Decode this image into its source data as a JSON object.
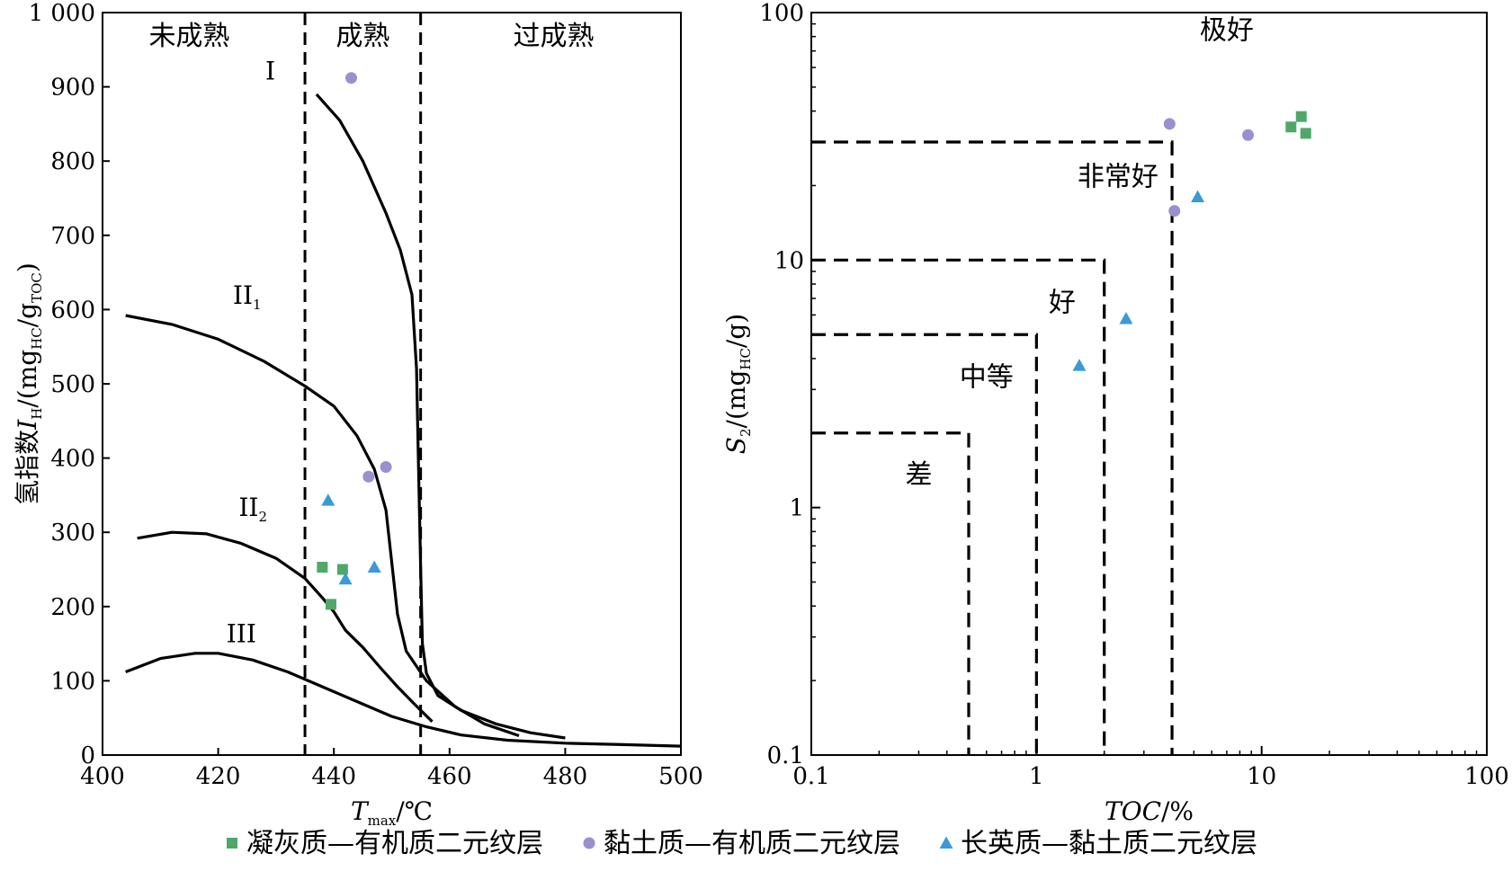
{
  "chart_data": [
    {
      "type": "scatter",
      "xlabel": "T",
      "xlabel_sub": "max",
      "xlabel_unit": "/℃",
      "ylabel_main": "氢指数",
      "ylabel_var": "I",
      "ylabel_var_sub": "H",
      "ylabel_unit": "/(mg",
      "ylabel_unit_sub1": "HC",
      "ylabel_unit_mid": "/g",
      "ylabel_unit_sub2": "TOC",
      "ylabel_unit_end": ")",
      "xlim": [
        400,
        500
      ],
      "ylim": [
        0,
        1000
      ],
      "x_ticks": [
        400,
        420,
        440,
        460,
        480,
        500
      ],
      "y_ticks": [
        0,
        100,
        200,
        300,
        400,
        500,
        600,
        700,
        800,
        900,
        1000
      ],
      "y_tick_labels": [
        "0",
        "100",
        "200",
        "300",
        "400",
        "500",
        "600",
        "700",
        "800",
        "900",
        "1 000"
      ],
      "vlines": [
        435,
        455
      ],
      "regions": [
        {
          "label": "未成熟",
          "x": 415
        },
        {
          "label": "成熟",
          "x": 445
        },
        {
          "label": "过成熟",
          "x": 478
        }
      ],
      "curves": [
        {
          "label": "I",
          "label_sub": "",
          "label_at": [
            429,
            910
          ],
          "points": [
            [
              437,
              890
            ],
            [
              441,
              855
            ],
            [
              445,
              800
            ],
            [
              449,
              730
            ],
            [
              451.5,
              680
            ],
            [
              453.5,
              620
            ],
            [
              454.3,
              520
            ],
            [
              454.6,
              400
            ],
            [
              455,
              250
            ],
            [
              455.3,
              150
            ],
            [
              456,
              110
            ],
            [
              458,
              80
            ],
            [
              462,
              60
            ],
            [
              468,
              42
            ],
            [
              474,
              30
            ],
            [
              480,
              23
            ]
          ]
        },
        {
          "label": "II",
          "label_sub": "1",
          "label_at": [
            425,
            608
          ],
          "points": [
            [
              404,
              592
            ],
            [
              412,
              580
            ],
            [
              420,
              560
            ],
            [
              428,
              530
            ],
            [
              435,
              497
            ],
            [
              440,
              470
            ],
            [
              444,
              430
            ],
            [
              447,
              385
            ],
            [
              449,
              330
            ],
            [
              450,
              260
            ],
            [
              451,
              190
            ],
            [
              452.5,
              140
            ],
            [
              456,
              100
            ],
            [
              461,
              65
            ],
            [
              466,
              42
            ],
            [
              472,
              26
            ]
          ]
        },
        {
          "label": "II",
          "label_sub": "2",
          "label_at": [
            426,
            322
          ],
          "points": [
            [
              406,
              292
            ],
            [
              412,
              300
            ],
            [
              418,
              298
            ],
            [
              424,
              285
            ],
            [
              430,
              265
            ],
            [
              435,
              238
            ],
            [
              438,
              212
            ],
            [
              440,
              193
            ],
            [
              442,
              168
            ],
            [
              445,
              145
            ],
            [
              448,
              118
            ],
            [
              451,
              92
            ],
            [
              454,
              68
            ],
            [
              457,
              45
            ]
          ]
        },
        {
          "label": "III",
          "label_sub": "",
          "label_at": [
            424,
            152
          ],
          "points": [
            [
              404,
              112
            ],
            [
              410,
              130
            ],
            [
              416,
              137
            ],
            [
              420,
              137
            ],
            [
              426,
              128
            ],
            [
              432,
              112
            ],
            [
              438,
              92
            ],
            [
              444,
              72
            ],
            [
              450,
              52
            ],
            [
              456,
              38
            ],
            [
              462,
              27
            ],
            [
              470,
              20
            ],
            [
              480,
              16
            ],
            [
              490,
              14
            ],
            [
              500,
              12
            ]
          ]
        }
      ],
      "series": [
        {
          "name": "凝灰质—有机质二元纹层",
          "marker": "square",
          "color": "#4fa86a",
          "points": [
            [
              438,
              253
            ],
            [
              441.5,
              250
            ],
            [
              439.5,
              203
            ]
          ]
        },
        {
          "name": "黏土质—有机质二元纹层",
          "marker": "circle",
          "color": "#9b8fd0",
          "points": [
            [
              443,
              912
            ],
            [
              446,
              375
            ],
            [
              449,
              388
            ]
          ]
        },
        {
          "name": "长英质—黏土质二元纹层",
          "marker": "triangle",
          "color": "#3a9ad8",
          "points": [
            [
              439,
              343
            ],
            [
              442,
              237
            ],
            [
              447,
              253
            ]
          ]
        }
      ]
    },
    {
      "type": "scatter",
      "log_x": true,
      "log_y": true,
      "xlabel": "TOC",
      "xlabel_unit": "/%",
      "ylabel_var": "S",
      "ylabel_var_sub": "2",
      "ylabel_unit": "/(mg",
      "ylabel_unit_sub": "HC",
      "ylabel_unit_end": "/g)",
      "xlim": [
        0.1,
        100
      ],
      "ylim": [
        0.1,
        100
      ],
      "x_ticks": [
        0.1,
        1,
        10,
        100
      ],
      "x_tick_labels": [
        "0.1",
        "1",
        "10",
        "100"
      ],
      "y_ticks": [
        0.1,
        1,
        10,
        100
      ],
      "y_tick_labels": [
        "0.1",
        "1",
        "10",
        "100"
      ],
      "boundaries": [
        {
          "x": 0.5,
          "y": 2
        },
        {
          "x": 1,
          "y": 5
        },
        {
          "x": 2,
          "y": 10
        },
        {
          "x": 4,
          "y": 30
        }
      ],
      "regions": [
        {
          "label": "差",
          "at": [
            0.3,
            1.25
          ]
        },
        {
          "label": "中等",
          "at": [
            0.6,
            3.1
          ]
        },
        {
          "label": "好",
          "at": [
            1.3,
            6.2
          ]
        },
        {
          "label": "非常好",
          "at": [
            2.3,
            20
          ]
        },
        {
          "label": "极好",
          "at": [
            7,
            78
          ]
        }
      ],
      "series": [
        {
          "name": "凝灰质—有机质二元纹层",
          "marker": "square",
          "color": "#4fa86a",
          "points": [
            [
              13.5,
              34.5
            ],
            [
              15,
              38
            ],
            [
              15.7,
              32.5
            ]
          ]
        },
        {
          "name": "黏土质—有机质二元纹层",
          "marker": "circle",
          "color": "#9b8fd0",
          "points": [
            [
              3.9,
              35.5
            ],
            [
              8.7,
              32
            ],
            [
              4.1,
              15.8
            ]
          ]
        },
        {
          "name": "长英质—黏土质二元纹层",
          "marker": "triangle",
          "color": "#3a9ad8",
          "points": [
            [
              5.2,
              18
            ],
            [
              2.5,
              5.8
            ],
            [
              1.55,
              3.75
            ]
          ]
        }
      ]
    }
  ],
  "legend": [
    {
      "label": "凝灰质—有机质二元纹层",
      "marker": "square",
      "color": "#4fa86a"
    },
    {
      "label": "黏土质—有机质二元纹层",
      "marker": "circle",
      "color": "#9b8fd0"
    },
    {
      "label": "长英质—黏土质二元纹层",
      "marker": "triangle",
      "color": "#3a9ad8"
    }
  ]
}
